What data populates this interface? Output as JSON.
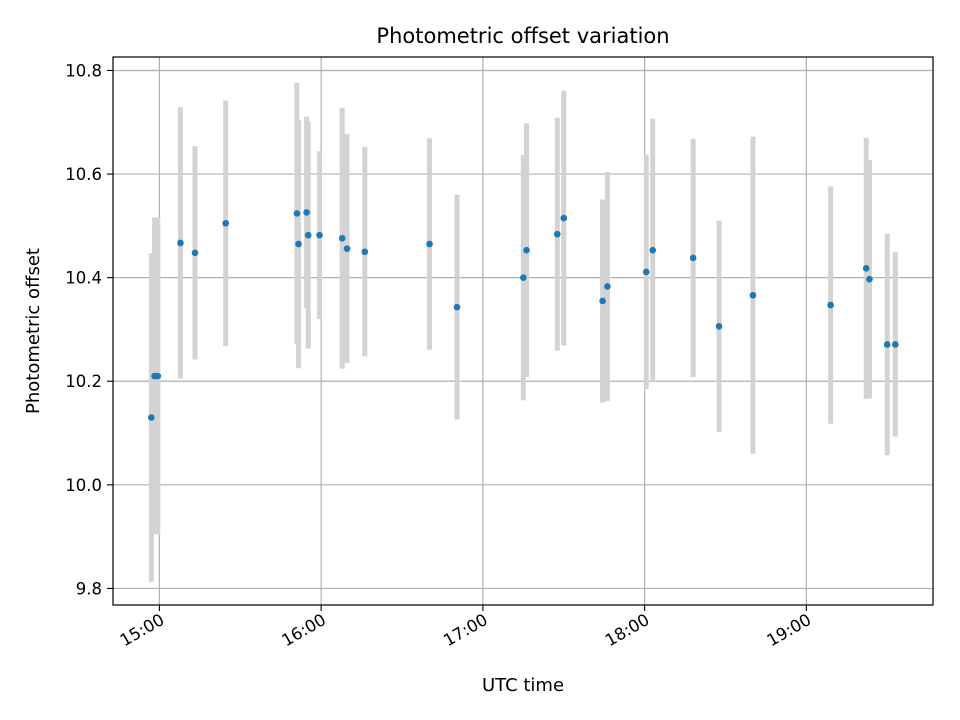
{
  "chart_data": {
    "type": "scatter",
    "title": "Photometric offset variation",
    "xlabel": "UTC time",
    "ylabel": "Photometric offset",
    "x_unit": "hours UTC",
    "xlim": [
      14.713,
      19.783
    ],
    "ylim": [
      9.768,
      10.826
    ],
    "xticks": [
      {
        "value": 15,
        "label": "15:00"
      },
      {
        "value": 16,
        "label": "16:00"
      },
      {
        "value": 17,
        "label": "17:00"
      },
      {
        "value": 18,
        "label": "18:00"
      },
      {
        "value": 19,
        "label": "19:00"
      }
    ],
    "yticks": [
      {
        "value": 9.8,
        "label": "9.8"
      },
      {
        "value": 10.0,
        "label": "10.0"
      },
      {
        "value": 10.2,
        "label": "10.2"
      },
      {
        "value": 10.4,
        "label": "10.4"
      },
      {
        "value": 10.6,
        "label": "10.6"
      },
      {
        "value": 10.8,
        "label": "10.8"
      }
    ],
    "grid": true,
    "point_color": "#1f77b4",
    "errorbar_color": "#d3d3d3",
    "points": [
      {
        "x": 14.95,
        "y": 10.13,
        "err": 0.317
      },
      {
        "x": 14.97,
        "y": 10.21,
        "err": 0.306
      },
      {
        "x": 14.99,
        "y": 10.21,
        "err": 0.306
      },
      {
        "x": 15.13,
        "y": 10.467,
        "err": 0.262
      },
      {
        "x": 15.22,
        "y": 10.448,
        "err": 0.206
      },
      {
        "x": 15.41,
        "y": 10.505,
        "err": 0.237
      },
      {
        "x": 15.85,
        "y": 10.524,
        "err": 0.252
      },
      {
        "x": 15.86,
        "y": 10.465,
        "err": 0.24
      },
      {
        "x": 15.91,
        "y": 10.526,
        "err": 0.185
      },
      {
        "x": 15.92,
        "y": 10.482,
        "err": 0.219
      },
      {
        "x": 15.99,
        "y": 10.482,
        "err": 0.162
      },
      {
        "x": 16.13,
        "y": 10.476,
        "err": 0.252
      },
      {
        "x": 16.16,
        "y": 10.456,
        "err": 0.221
      },
      {
        "x": 16.27,
        "y": 10.45,
        "err": 0.202
      },
      {
        "x": 16.67,
        "y": 10.465,
        "err": 0.204
      },
      {
        "x": 16.84,
        "y": 10.343,
        "err": 0.217
      },
      {
        "x": 17.25,
        "y": 10.4,
        "err": 0.237
      },
      {
        "x": 17.27,
        "y": 10.453,
        "err": 0.245
      },
      {
        "x": 17.46,
        "y": 10.484,
        "err": 0.225
      },
      {
        "x": 17.5,
        "y": 10.515,
        "err": 0.246
      },
      {
        "x": 17.74,
        "y": 10.355,
        "err": 0.196
      },
      {
        "x": 17.77,
        "y": 10.383,
        "err": 0.221
      },
      {
        "x": 18.01,
        "y": 10.411,
        "err": 0.226
      },
      {
        "x": 18.05,
        "y": 10.453,
        "err": 0.254
      },
      {
        "x": 18.3,
        "y": 10.438,
        "err": 0.23
      },
      {
        "x": 18.46,
        "y": 10.306,
        "err": 0.204
      },
      {
        "x": 18.67,
        "y": 10.366,
        "err": 0.306
      },
      {
        "x": 19.15,
        "y": 10.347,
        "err": 0.229
      },
      {
        "x": 19.37,
        "y": 10.418,
        "err": 0.252
      },
      {
        "x": 19.39,
        "y": 10.397,
        "err": 0.23
      },
      {
        "x": 19.5,
        "y": 10.271,
        "err": 0.214
      },
      {
        "x": 19.55,
        "y": 10.271,
        "err": 0.178
      }
    ]
  }
}
